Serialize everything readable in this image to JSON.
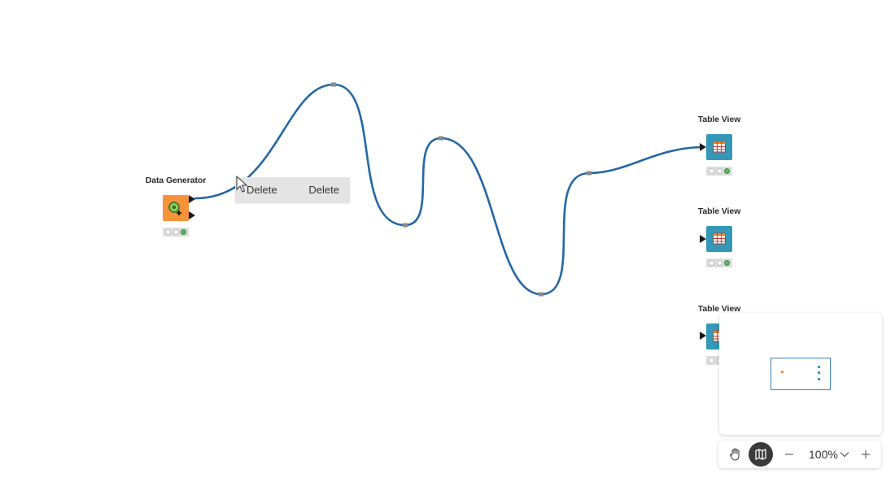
{
  "nodes": {
    "source": {
      "title": "Data Generator",
      "icon": "data-generator-icon",
      "color": "#f6923a"
    },
    "views": [
      {
        "title": "Table View",
        "icon": "table-icon",
        "color": "#3498b8"
      },
      {
        "title": "Table View",
        "icon": "table-icon",
        "color": "#3498b8"
      },
      {
        "title": "Table View",
        "icon": "table-icon",
        "color": "#3498b8"
      }
    ]
  },
  "connection": {
    "color": "#2467a3",
    "bendpoint_color": "#8a8a8a"
  },
  "context_menu": {
    "items": [
      "Delete",
      "Delete"
    ]
  },
  "zoom": {
    "value": "100%",
    "pan_icon": "hand-icon",
    "minimap_icon": "map-icon"
  }
}
